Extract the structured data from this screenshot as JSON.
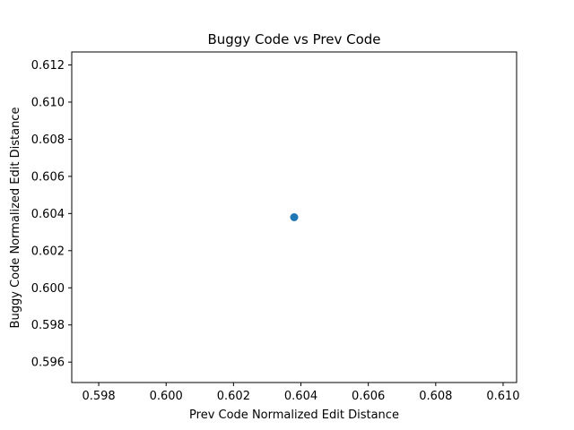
{
  "chart_data": {
    "type": "scatter",
    "title": "Buggy Code vs Prev Code",
    "xlabel": "Prev Code Normalized Edit Distance",
    "ylabel": "Buggy Code Normalized Edit Distance",
    "xlim": [
      0.5972,
      0.6104
    ],
    "ylim": [
      0.5949,
      0.6127
    ],
    "x_ticks": [
      0.598,
      0.6,
      0.602,
      0.604,
      0.606,
      0.608,
      0.61
    ],
    "x_tick_labels": [
      "0.598",
      "0.600",
      "0.602",
      "0.604",
      "0.606",
      "0.608",
      "0.610"
    ],
    "y_ticks": [
      0.596,
      0.598,
      0.6,
      0.602,
      0.604,
      0.606,
      0.608,
      0.61,
      0.612
    ],
    "y_tick_labels": [
      "0.596",
      "0.598",
      "0.600",
      "0.602",
      "0.604",
      "0.606",
      "0.608",
      "0.610",
      "0.612"
    ],
    "grid": false,
    "series": [
      {
        "points": [
          {
            "x": 0.6038,
            "y": 0.6038
          }
        ],
        "color": "#1f77b4"
      }
    ]
  }
}
